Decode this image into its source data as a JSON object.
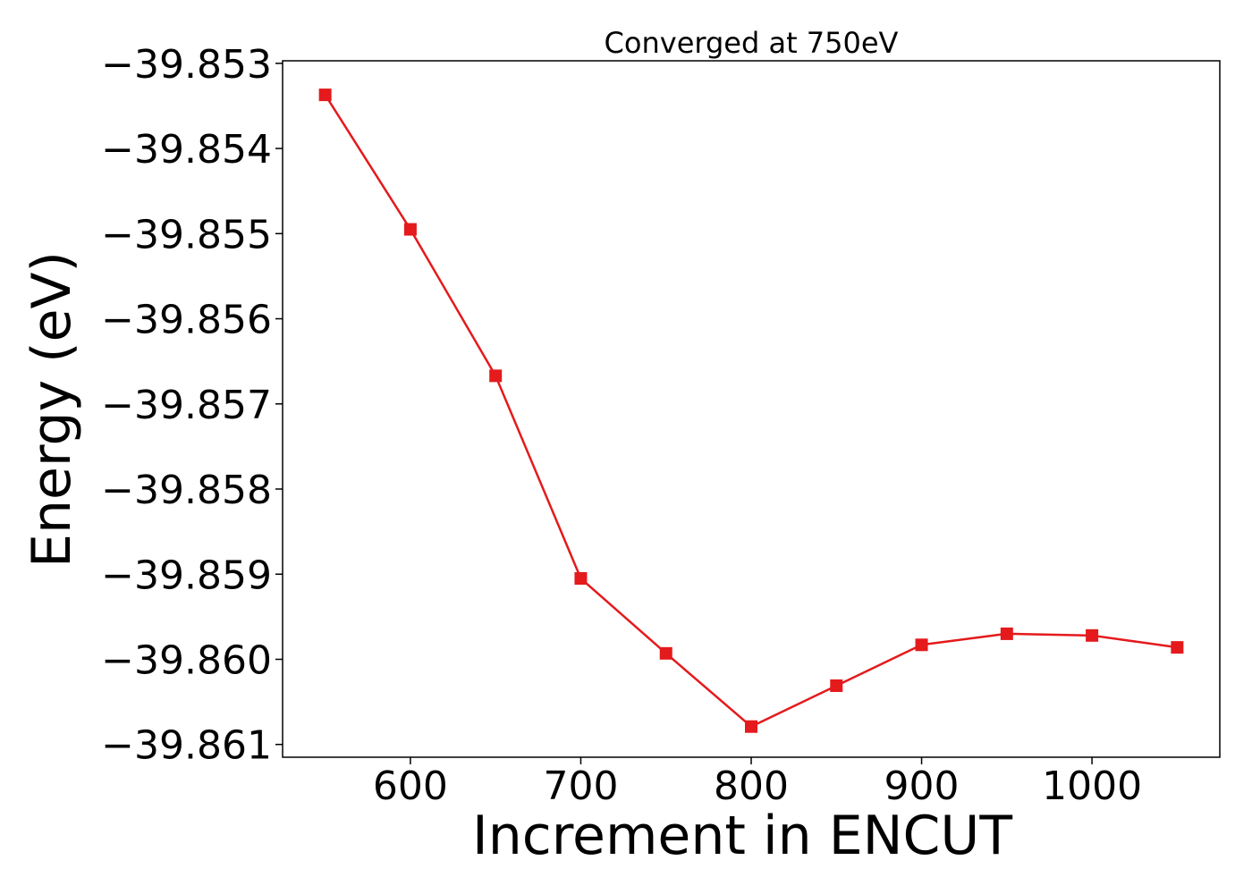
{
  "chart_data": {
    "type": "line",
    "title": "Converged at 750eV",
    "xlabel": "Increment in ENCUT",
    "ylabel": "Energy (eV)",
    "x": [
      550,
      600,
      650,
      700,
      750,
      800,
      850,
      900,
      950,
      1000,
      1050
    ],
    "series": [
      {
        "values": [
          -39.85337,
          -39.85495,
          -39.85667,
          -39.85905,
          -39.85993,
          -39.86079,
          -39.86031,
          -39.85983,
          -39.8597,
          -39.85972,
          -39.85986
        ],
        "color": "#e41a1c",
        "marker": "square"
      }
    ],
    "xlim": [
      525,
      1075
    ],
    "ylim": [
      -39.86115,
      -39.85297
    ],
    "xticks": [
      600,
      700,
      800,
      900,
      1000
    ],
    "xtick_labels": [
      "600",
      "700",
      "800",
      "900",
      "1000"
    ],
    "yticks": [
      -39.853,
      -39.854,
      -39.855,
      -39.856,
      -39.857,
      -39.858,
      -39.859,
      -39.86,
      -39.861
    ],
    "ytick_labels": [
      "−39.853",
      "−39.854",
      "−39.855",
      "−39.856",
      "−39.857",
      "−39.858",
      "−39.859",
      "−39.860",
      "−39.861"
    ],
    "grid": false,
    "legend": false
  }
}
